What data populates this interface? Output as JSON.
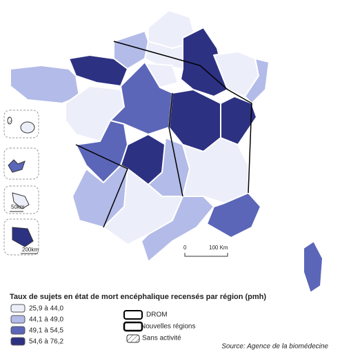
{
  "legend": {
    "title": "Taux de sujets en état de mort encéphalique recensés par région (pmh)",
    "items": [
      {
        "label": "25,9 à 44,0",
        "color": "#eceef9"
      },
      {
        "label": "44,1 à 49,0",
        "color": "#b3bbe8"
      },
      {
        "label": "49,1 à 54,5",
        "color": "#5b66b8"
      },
      {
        "label": "54,6 à 76,2",
        "color": "#2d3182"
      }
    ]
  },
  "keys": {
    "drom": "DROM",
    "nouvelles_regions": "Nouvelles régions",
    "sans_activite": "Sans activité"
  },
  "scale": {
    "zero": "0",
    "main": "100 Km",
    "inset_small": "50km",
    "inset_large": "200km"
  },
  "source": "Source: Agence de la biomédecine"
}
